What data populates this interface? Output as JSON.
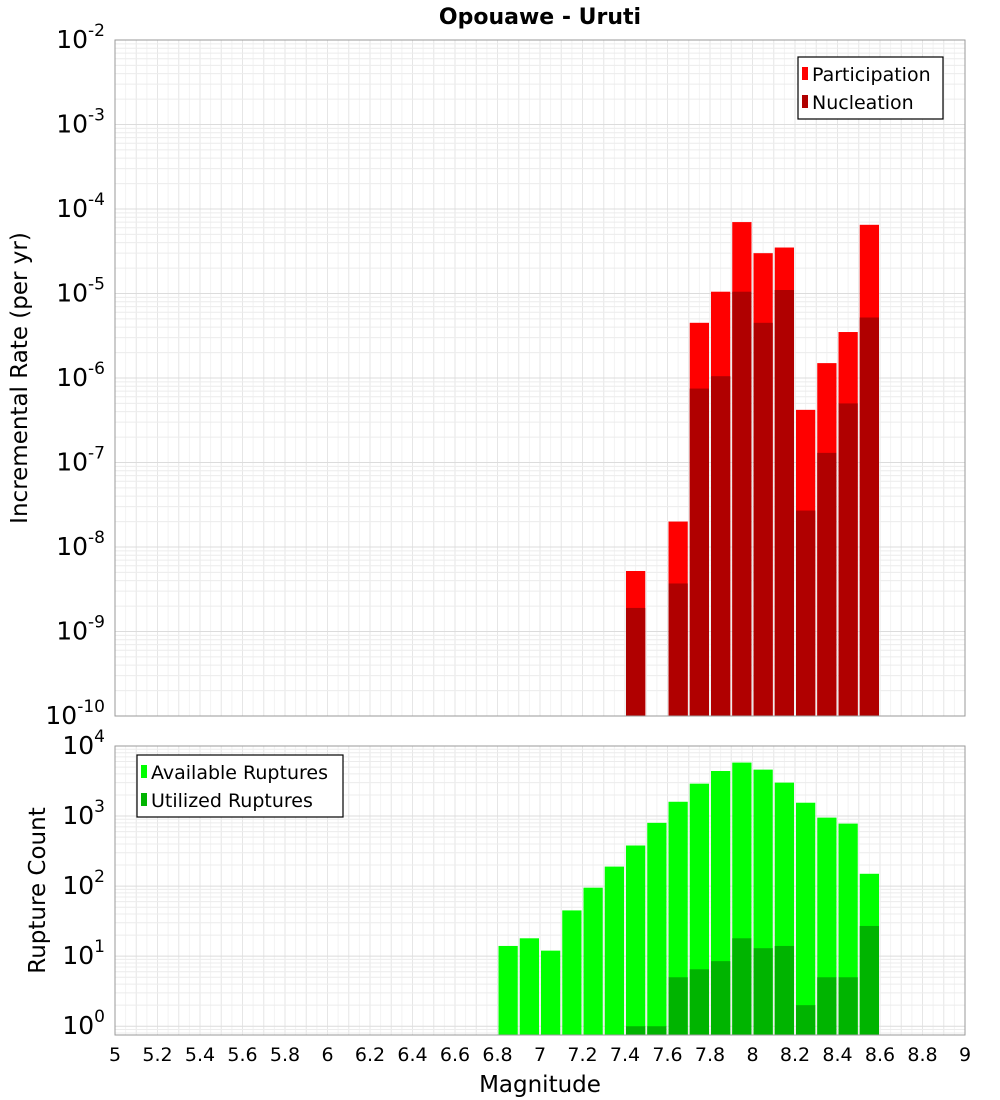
{
  "chart_data": [
    {
      "type": "bar",
      "title": "Opouawe - Uruti",
      "ylabel": "Incremental Rate (per yr)",
      "xlabel": "",
      "xlim": [
        5,
        9
      ],
      "ylim": [
        1e-10,
        0.01
      ],
      "yscale": "log",
      "grid": true,
      "legend_position": "top-right",
      "bin_width": 0.1,
      "x": [
        7.45,
        7.65,
        7.75,
        7.85,
        7.95,
        8.05,
        8.15,
        8.25,
        8.35,
        8.45,
        8.55
      ],
      "series": [
        {
          "name": "Participation",
          "color": "#ff0000",
          "values": [
            5.2e-09,
            2e-08,
            4.5e-06,
            1.05e-05,
            7e-05,
            3e-05,
            3.5e-05,
            4.2e-07,
            1.5e-06,
            3.5e-06,
            6.5e-05
          ]
        },
        {
          "name": "Nucleation",
          "color": "#b00000",
          "values": [
            1.9e-09,
            3.7e-09,
            7.5e-07,
            1.05e-06,
            1.05e-05,
            4.5e-06,
            1.1e-05,
            2.7e-08,
            1.3e-07,
            5e-07,
            5.2e-06
          ]
        }
      ],
      "ytick_exponents": [
        "-2",
        "-3",
        "-4",
        "-5",
        "-6",
        "-7",
        "-8",
        "-9",
        "-10"
      ]
    },
    {
      "type": "bar",
      "title": "",
      "ylabel": "Rupture Count",
      "xlabel": "Magnitude",
      "xlim": [
        5,
        9
      ],
      "ylim": [
        0.75,
        10000
      ],
      "yscale": "log",
      "grid": true,
      "legend_position": "top-left",
      "bin_width": 0.1,
      "x": [
        6.85,
        6.95,
        7.05,
        7.15,
        7.25,
        7.35,
        7.45,
        7.55,
        7.65,
        7.75,
        7.85,
        7.95,
        8.05,
        8.15,
        8.25,
        8.35,
        8.45,
        8.55
      ],
      "series": [
        {
          "name": "Available Ruptures",
          "color": "#00ff00",
          "values": [
            14,
            18,
            12,
            45,
            95,
            190,
            380,
            800,
            1600,
            2900,
            4400,
            5800,
            4600,
            3000,
            1550,
            950,
            780,
            150
          ]
        },
        {
          "name": "Utilized Ruptures",
          "color": "#00b400",
          "values": [
            0,
            0,
            0,
            0,
            0,
            0,
            1,
            1,
            5,
            6.5,
            8.5,
            18,
            13,
            14,
            2,
            5,
            5,
            27
          ]
        }
      ],
      "ytick_exponents": [
        "4",
        "3",
        "2",
        "1",
        "0"
      ],
      "xtick_labels": [
        "5",
        "5.2",
        "5.4",
        "5.6",
        "5.8",
        "6",
        "6.2",
        "6.4",
        "6.6",
        "6.8",
        "7",
        "7.2",
        "7.4",
        "7.6",
        "7.8",
        "8",
        "8.2",
        "8.4",
        "8.6",
        "8.8",
        "9"
      ]
    }
  ]
}
